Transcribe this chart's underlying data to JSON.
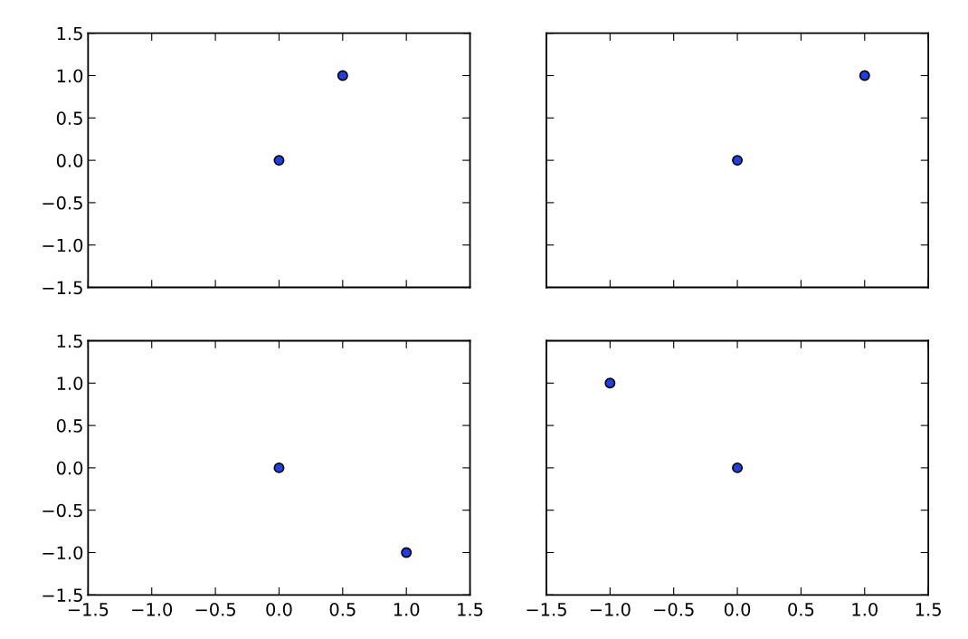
{
  "chart_data": [
    {
      "type": "scatter",
      "x": [
        0,
        0.5
      ],
      "values": [
        0,
        1
      ],
      "color": "#1f3fe0",
      "marker": "circle",
      "xlim": [
        -1.5,
        1.5
      ],
      "ylim": [
        -1.5,
        1.5
      ],
      "xticks": [
        {
          "value": -1.5,
          "label": null
        },
        {
          "value": -1.0,
          "label": null
        },
        {
          "value": -0.5,
          "label": null
        },
        {
          "value": 0.0,
          "label": null
        },
        {
          "value": 0.5,
          "label": null
        },
        {
          "value": 1.0,
          "label": null
        },
        {
          "value": 1.5,
          "label": null
        }
      ],
      "yticks": [
        {
          "value": -1.5,
          "label": "−1.5"
        },
        {
          "value": -1.0,
          "label": "−1.0"
        },
        {
          "value": -0.5,
          "label": "−0.5"
        },
        {
          "value": 0.0,
          "label": "0.0"
        },
        {
          "value": 0.5,
          "label": "0.5"
        },
        {
          "value": 1.0,
          "label": "1.0"
        },
        {
          "value": 1.5,
          "label": "1.5"
        }
      ],
      "tick_labels": "y"
    },
    {
      "type": "scatter",
      "x": [
        0,
        1
      ],
      "values": [
        0,
        1
      ],
      "color": "#1f3fe0",
      "marker": "circle",
      "xlim": [
        -1.5,
        1.5
      ],
      "ylim": [
        -1.5,
        1.5
      ],
      "xticks": [
        {
          "value": -1.5,
          "label": null
        },
        {
          "value": -1.0,
          "label": null
        },
        {
          "value": -0.5,
          "label": null
        },
        {
          "value": 0.0,
          "label": null
        },
        {
          "value": 0.5,
          "label": null
        },
        {
          "value": 1.0,
          "label": null
        },
        {
          "value": 1.5,
          "label": null
        }
      ],
      "yticks": [
        {
          "value": -1.5,
          "label": null
        },
        {
          "value": -1.0,
          "label": null
        },
        {
          "value": -0.5,
          "label": null
        },
        {
          "value": 0.0,
          "label": null
        },
        {
          "value": 0.5,
          "label": null
        },
        {
          "value": 1.0,
          "label": null
        },
        {
          "value": 1.5,
          "label": null
        }
      ],
      "tick_labels": false
    },
    {
      "type": "scatter",
      "x": [
        0,
        1
      ],
      "values": [
        0,
        -1
      ],
      "color": "#1f3fe0",
      "marker": "circle",
      "xlim": [
        -1.5,
        1.5
      ],
      "ylim": [
        -1.5,
        1.5
      ],
      "xticks": [
        {
          "value": -1.5,
          "label": "−1.5"
        },
        {
          "value": -1.0,
          "label": "−1.0"
        },
        {
          "value": -0.5,
          "label": "−0.5"
        },
        {
          "value": 0.0,
          "label": "0.0"
        },
        {
          "value": 0.5,
          "label": "0.5"
        },
        {
          "value": 1.0,
          "label": "1.0"
        },
        {
          "value": 1.5,
          "label": "1.5"
        }
      ],
      "yticks": [
        {
          "value": -1.5,
          "label": "−1.5"
        },
        {
          "value": -1.0,
          "label": "−1.0"
        },
        {
          "value": -0.5,
          "label": "−0.5"
        },
        {
          "value": 0.0,
          "label": "0.0"
        },
        {
          "value": 0.5,
          "label": "0.5"
        },
        {
          "value": 1.0,
          "label": "1.0"
        },
        {
          "value": 1.5,
          "label": "1.5"
        }
      ]
    },
    {
      "type": "scatter",
      "x": [
        0,
        -1
      ],
      "values": [
        0,
        1
      ],
      "color": "#1f3fe0",
      "marker": "circle",
      "xlim": [
        -1.5,
        1.5
      ],
      "ylim": [
        -1.5,
        1.5
      ],
      "xticks": [
        {
          "value": -1.5,
          "label": "−1.5"
        },
        {
          "value": -1.0,
          "label": "−1.0"
        },
        {
          "value": -0.5,
          "label": "−0.5"
        },
        {
          "value": 0.0,
          "label": "0.0"
        },
        {
          "value": 0.5,
          "label": "0.5"
        },
        {
          "value": 1.0,
          "label": "1.0"
        },
        {
          "value": 1.5,
          "label": "1.5"
        }
      ],
      "yticks": [
        {
          "value": -1.5,
          "label": null
        },
        {
          "value": -1.0,
          "label": null
        },
        {
          "value": -0.5,
          "label": null
        },
        {
          "value": 0.0,
          "label": null
        },
        {
          "value": 0.5,
          "label": null
        },
        {
          "value": 1.0,
          "label": null
        },
        {
          "value": 1.5,
          "label": null
        }
      ],
      "tick_labels": "x"
    }
  ]
}
